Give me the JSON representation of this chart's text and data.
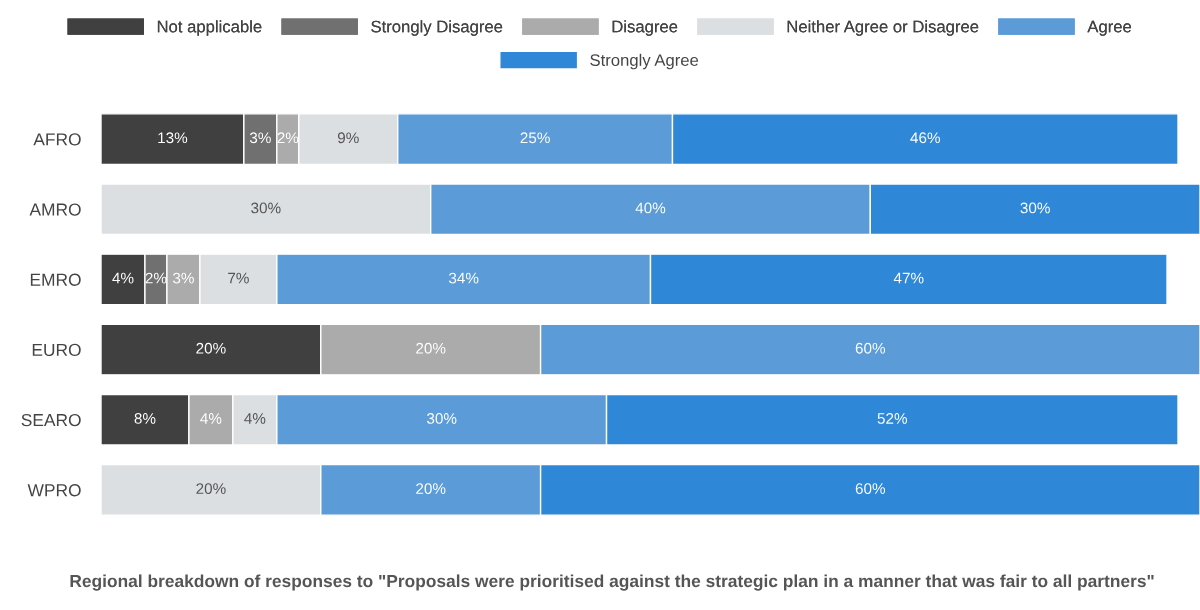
{
  "chart_data": {
    "type": "bar",
    "orientation": "horizontal",
    "stacked": true,
    "title": "Regional breakdown of responses to \"Proposals were prioritised against the strategic plan in a manner that was fair to all partners\"",
    "categories": [
      "AFRO",
      "AMRO",
      "EMRO",
      "EURO",
      "SEARO",
      "WPRO"
    ],
    "series": [
      {
        "name": "Not applicable",
        "color": "#404040",
        "values": [
          13,
          null,
          4,
          20,
          8,
          null
        ],
        "value_labels": [
          "13%",
          null,
          "4%",
          "20%",
          "8%",
          null
        ]
      },
      {
        "name": "Strongly Disagree",
        "color": "#707070",
        "values": [
          3,
          null,
          2,
          null,
          null,
          null
        ],
        "value_labels": [
          "3%",
          null,
          "2%",
          null,
          null,
          null
        ]
      },
      {
        "name": "Disagree",
        "color": "#ababab",
        "values": [
          2,
          null,
          3,
          20,
          4,
          null
        ],
        "value_labels": [
          "2%",
          null,
          "3%",
          "20%",
          "4%",
          null
        ]
      },
      {
        "name": "Neither Agree or Disagree",
        "color": "#dcdfe2",
        "values": [
          9,
          30,
          7,
          null,
          4,
          20
        ],
        "value_labels": [
          "9%",
          "30%",
          "7%",
          null,
          "4%",
          "20%"
        ]
      },
      {
        "name": "Agree",
        "color": "#5b9bd7",
        "values": [
          25,
          40,
          34,
          60,
          30,
          20
        ],
        "value_labels": [
          "25%",
          "40%",
          "34%",
          "60%",
          "30%",
          "20%"
        ]
      },
      {
        "name": "Strongly Agree",
        "color": "#2f88d7",
        "values": [
          46,
          30,
          47,
          null,
          52,
          60
        ],
        "value_labels": [
          "46%",
          "30%",
          "47%",
          null,
          "52%",
          "60%"
        ]
      }
    ],
    "legend": "top",
    "grid": false
  }
}
